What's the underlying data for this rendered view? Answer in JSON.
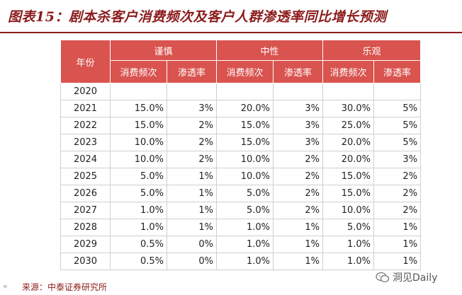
{
  "title": "图表15：剧本杀客户消费频次及客户人群渗透率同比增长预测",
  "table": {
    "year_header": "年份",
    "groups": [
      "谨慎",
      "中性",
      "乐观"
    ],
    "sub_headers": [
      "消费频次",
      "渗透率",
      "消费频次",
      "渗透率",
      "消费频次",
      "渗透率"
    ],
    "rows": [
      {
        "year": "2020",
        "cells": [
          "",
          "",
          "",
          "",
          "",
          ""
        ]
      },
      {
        "year": "2021",
        "cells": [
          "15.0%",
          "3%",
          "20.0%",
          "3%",
          "30.0%",
          "5%"
        ]
      },
      {
        "year": "2022",
        "cells": [
          "15.0%",
          "2%",
          "15.0%",
          "3%",
          "25.0%",
          "5%"
        ]
      },
      {
        "year": "2023",
        "cells": [
          "10.0%",
          "2%",
          "15.0%",
          "3%",
          "20.0%",
          "5%"
        ]
      },
      {
        "year": "2024",
        "cells": [
          "10.0%",
          "2%",
          "10.0%",
          "2%",
          "20.0%",
          "3%"
        ]
      },
      {
        "year": "2025",
        "cells": [
          "5.0%",
          "1%",
          "10.0%",
          "2%",
          "15.0%",
          "2%"
        ]
      },
      {
        "year": "2026",
        "cells": [
          "5.0%",
          "1%",
          "5.0%",
          "2%",
          "15.0%",
          "2%"
        ]
      },
      {
        "year": "2027",
        "cells": [
          "1.0%",
          "1%",
          "5.0%",
          "2%",
          "10.0%",
          "2%"
        ]
      },
      {
        "year": "2028",
        "cells": [
          "1.0%",
          "1%",
          "1.0%",
          "1%",
          "5.0%",
          "1%"
        ]
      },
      {
        "year": "2029",
        "cells": [
          "0.5%",
          "0%",
          "1.0%",
          "1%",
          "1.0%",
          "1%"
        ]
      },
      {
        "year": "2030",
        "cells": [
          "0.5%",
          "0%",
          "1.0%",
          "1%",
          "1.0%",
          "1%"
        ]
      }
    ]
  },
  "footer": {
    "source": "来源：中泰证券研究所",
    "mark": "«"
  },
  "watermark": {
    "label": "洞见Daily",
    "icon": "wechat-icon"
  },
  "colors": {
    "title": "#8b1b1b",
    "header_bg": "#d9534f"
  }
}
